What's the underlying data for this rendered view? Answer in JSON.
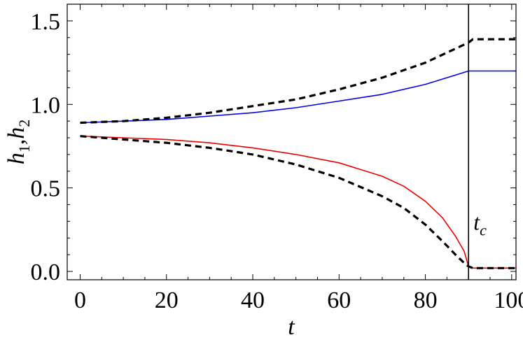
{
  "chart_data": {
    "type": "line",
    "xlabel": "t",
    "ylabel": {
      "h1": "h",
      "sub1": "1",
      "sep": ",",
      "h2": "h",
      "sub2": "2"
    },
    "xlim": [
      -3,
      101
    ],
    "ylim": [
      -0.05,
      1.6
    ],
    "xticks": [
      "0",
      "20",
      "40",
      "60",
      "80",
      "100"
    ],
    "yticks": [
      "0.0",
      "0.5",
      "1.0",
      "1.5"
    ],
    "grid": false,
    "annotations": [
      {
        "text": "t",
        "sub": "c",
        "kind": "vertical-line",
        "x": 90
      }
    ],
    "series": [
      {
        "color": "#0000ee",
        "style": "solid",
        "x": [
          0,
          10,
          20,
          30,
          40,
          50,
          60,
          70,
          80,
          85,
          90,
          101
        ],
        "y": [
          0.89,
          0.9,
          0.91,
          0.93,
          0.95,
          0.98,
          1.02,
          1.06,
          1.12,
          1.16,
          1.2,
          1.2
        ]
      },
      {
        "color": "#000000",
        "style": "dashed",
        "x": [
          0,
          10,
          20,
          30,
          40,
          50,
          60,
          70,
          80,
          85,
          90,
          91,
          101
        ],
        "y": [
          0.89,
          0.9,
          0.92,
          0.95,
          0.99,
          1.03,
          1.09,
          1.16,
          1.25,
          1.31,
          1.37,
          1.39,
          1.39
        ]
      },
      {
        "color": "#ee0000",
        "style": "solid",
        "x": [
          0,
          10,
          20,
          30,
          40,
          50,
          60,
          70,
          75,
          80,
          84,
          87,
          89,
          90,
          91,
          101
        ],
        "y": [
          0.81,
          0.8,
          0.79,
          0.77,
          0.74,
          0.7,
          0.65,
          0.57,
          0.51,
          0.42,
          0.32,
          0.21,
          0.12,
          0.03,
          0.02,
          0.02
        ]
      },
      {
        "color": "#000000",
        "style": "dashed",
        "x": [
          0,
          10,
          20,
          30,
          40,
          50,
          60,
          70,
          75,
          80,
          84,
          87,
          89,
          90,
          91,
          101
        ],
        "y": [
          0.81,
          0.79,
          0.77,
          0.74,
          0.7,
          0.64,
          0.56,
          0.45,
          0.38,
          0.28,
          0.18,
          0.1,
          0.05,
          0.03,
          0.02,
          0.02
        ]
      }
    ]
  }
}
